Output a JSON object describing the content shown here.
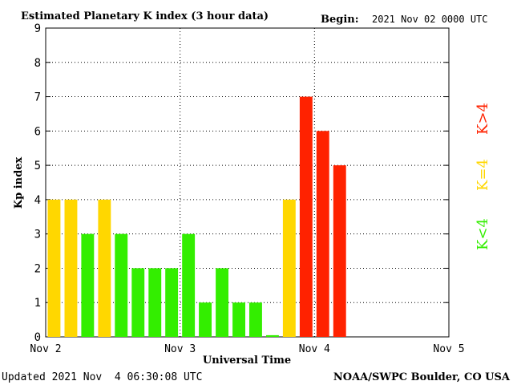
{
  "header": {
    "title": "Estimated Planetary K index (3 hour data)",
    "begin_label": "Begin:",
    "begin_value": "2021 Nov 02 0000 UTC"
  },
  "footer": {
    "updated": "Updated 2021 Nov  4 06:30:08 UTC",
    "credit": "NOAA/SWPC Boulder, CO USA"
  },
  "legend": {
    "items": [
      {
        "label": "K<4",
        "color": "#33ee00"
      },
      {
        "label": "K=4",
        "color": "#ffd700"
      },
      {
        "label": "K>4",
        "color": "#ff2200"
      }
    ]
  },
  "colors": {
    "below": "#33ee00",
    "equal": "#ffd700",
    "above": "#ff2200"
  },
  "chart_data": {
    "type": "bar",
    "xlabel": "Universal Time",
    "ylabel": "Kp index",
    "ylim": [
      0,
      9
    ],
    "yticks": [
      "0",
      "1",
      "2",
      "3",
      "4",
      "5",
      "6",
      "7",
      "8",
      "9"
    ],
    "xticks": [
      "Nov 2",
      "Nov 3",
      "Nov 4",
      "Nov 5"
    ],
    "grid": true,
    "interval_hours": 3,
    "values": [
      4,
      4,
      3,
      4,
      3,
      2,
      2,
      2,
      3,
      1,
      2,
      1,
      1,
      0.05,
      4,
      7,
      6,
      5
    ]
  }
}
